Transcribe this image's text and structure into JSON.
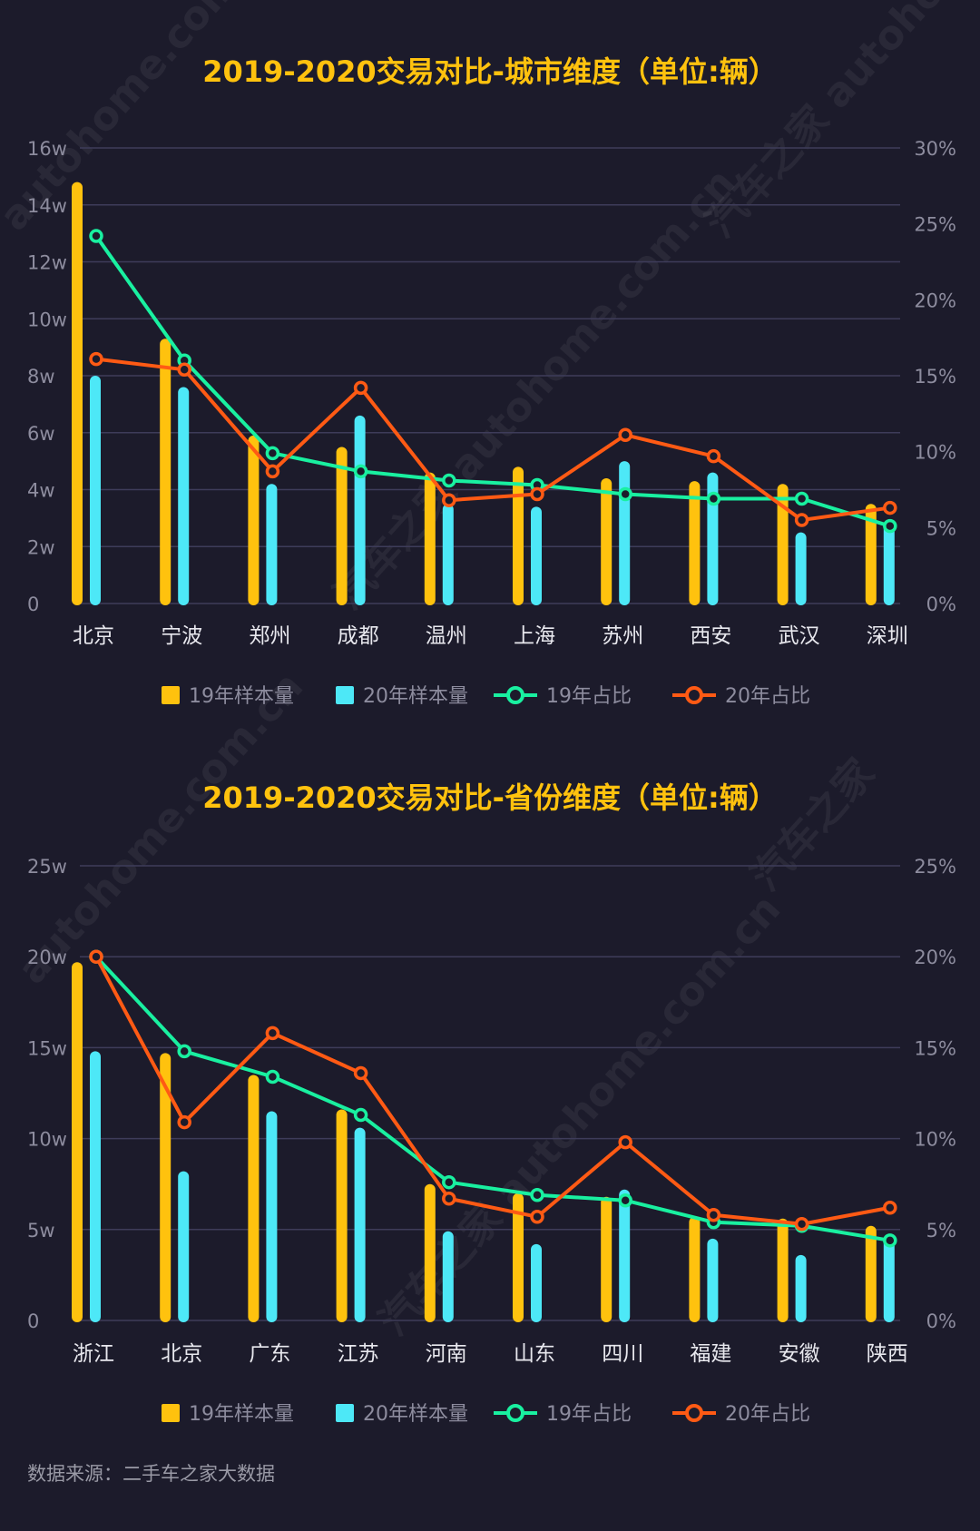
{
  "chart_data": [
    {
      "type": "bar",
      "title": "2019-2020交易对比-城市维度（单位:辆）",
      "categories": [
        "北京",
        "宁波",
        "郑州",
        "成都",
        "温州",
        "上海",
        "苏州",
        "西安",
        "武汉",
        "深圳"
      ],
      "left_axis": {
        "ticks": [
          "0",
          "2w",
          "4w",
          "6w",
          "8w",
          "10w",
          "12w",
          "14w",
          "16w"
        ],
        "range": [
          0,
          16
        ]
      },
      "right_axis": {
        "ticks": [
          "0%",
          "5%",
          "10%",
          "15%",
          "20%",
          "25%",
          "30%"
        ],
        "range": [
          0,
          30
        ]
      },
      "series": [
        {
          "name": "19年样本量",
          "kind": "bar",
          "axis": "left",
          "color": "#ffc20e",
          "values": [
            14.8,
            9.3,
            5.9,
            5.5,
            4.6,
            4.8,
            4.4,
            4.3,
            4.2,
            3.5
          ]
        },
        {
          "name": "20年样本量",
          "kind": "bar",
          "axis": "left",
          "color": "#4de8f7",
          "values": [
            8.0,
            7.6,
            4.2,
            6.6,
            3.5,
            3.4,
            5.0,
            4.6,
            2.5,
            2.9
          ]
        },
        {
          "name": "19年占比",
          "kind": "line",
          "axis": "right",
          "color": "#19f0a0",
          "values": [
            24.2,
            16.0,
            9.9,
            8.7,
            8.1,
            7.8,
            7.2,
            6.9,
            6.9,
            5.1
          ]
        },
        {
          "name": "20年占比",
          "kind": "line",
          "axis": "right",
          "color": "#ff5a14",
          "values": [
            16.1,
            15.4,
            8.7,
            14.2,
            6.8,
            7.2,
            11.1,
            9.7,
            5.5,
            6.3
          ]
        }
      ],
      "grid": true,
      "legend": "bottom"
    },
    {
      "type": "bar",
      "title": "2019-2020交易对比-省份维度（单位:辆）",
      "categories": [
        "浙江",
        "北京",
        "广东",
        "江苏",
        "河南",
        "山东",
        "四川",
        "福建",
        "安徽",
        "陕西"
      ],
      "left_axis": {
        "ticks": [
          "0",
          "5w",
          "10w",
          "15w",
          "20w",
          "25w"
        ],
        "range": [
          0,
          25
        ]
      },
      "right_axis": {
        "ticks": [
          "0%",
          "5%",
          "10%",
          "15%",
          "20%",
          "25%"
        ],
        "range": [
          0,
          25
        ]
      },
      "series": [
        {
          "name": "19年样本量",
          "kind": "bar",
          "axis": "left",
          "color": "#ffc20e",
          "values": [
            19.7,
            14.7,
            13.5,
            11.6,
            7.5,
            7.0,
            6.8,
            5.7,
            5.6,
            5.2
          ]
        },
        {
          "name": "20年样本量",
          "kind": "bar",
          "axis": "left",
          "color": "#4de8f7",
          "values": [
            14.8,
            8.2,
            11.5,
            10.6,
            4.9,
            4.2,
            7.2,
            4.5,
            3.6,
            4.6
          ]
        },
        {
          "name": "19年占比",
          "kind": "line",
          "axis": "right",
          "color": "#19f0a0",
          "values": [
            20.0,
            14.8,
            13.4,
            11.3,
            7.6,
            6.9,
            6.6,
            5.4,
            5.2,
            4.4
          ]
        },
        {
          "name": "20年占比",
          "kind": "line",
          "axis": "right",
          "color": "#ff5a14",
          "values": [
            20.0,
            10.9,
            15.8,
            13.6,
            6.7,
            5.7,
            9.8,
            5.8,
            5.3,
            6.2
          ]
        }
      ],
      "grid": true,
      "legend": "bottom"
    }
  ],
  "footer": {
    "source": "数据来源：二手车之家大数据"
  },
  "watermarks": [
    "autohome.com.cn",
    "汽车之家 autohome.com.cn",
    "汽车之家 autohome.com.cn",
    "autohome.com.cn",
    "汽车之家",
    "汽车之家 autohome.com.cn"
  ]
}
